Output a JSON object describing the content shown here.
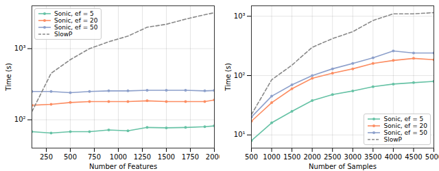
{
  "chart_data": [
    {
      "type": "line",
      "xlabel": "Number of Features",
      "ylabel": "Time (s)",
      "log": "y",
      "grid": true,
      "legend": "upper left",
      "x": [
        100,
        300,
        500,
        700,
        900,
        1100,
        1300,
        1500,
        1700,
        1900,
        2000
      ],
      "xlim": [
        100,
        2000
      ],
      "xticks": [
        250,
        500,
        750,
        1000,
        1250,
        1500,
        1750,
        2000
      ],
      "ylim": [
        40,
        4000
      ],
      "yticks": [
        {
          "value": 100,
          "label": "10²"
        },
        {
          "value": 1000,
          "label": "10³"
        }
      ],
      "series": [
        {
          "name": "Sonic, ef = 5",
          "color": "#66c2a5",
          "marker": "o",
          "line_style": "solid",
          "values": [
            68,
            65,
            68,
            68,
            72,
            70,
            78,
            77,
            78,
            80,
            82
          ]
        },
        {
          "name": "Sonic, ef = 20",
          "color": "#fc8d62",
          "marker": "o",
          "line_style": "solid",
          "values": [
            160,
            165,
            175,
            180,
            180,
            180,
            185,
            180,
            180,
            180,
            190
          ]
        },
        {
          "name": "Sonic, ef = 50",
          "color": "#8da0cb",
          "marker": "o",
          "line_style": "solid",
          "values": [
            250,
            250,
            240,
            250,
            255,
            255,
            260,
            260,
            260,
            255,
            258
          ]
        },
        {
          "name": "SlowP",
          "color": "#888888",
          "line_style": "dashed",
          "values": [
            130,
            450,
            700,
            1000,
            1250,
            1500,
            2000,
            2200,
            2600,
            3000,
            3200
          ]
        }
      ]
    },
    {
      "type": "line",
      "xlabel": "Number of Samples",
      "ylabel": "Time (s)",
      "log": "y",
      "grid": true,
      "legend": "lower right",
      "x": [
        500,
        1000,
        1500,
        2000,
        2500,
        3000,
        3500,
        4000,
        4500,
        5000
      ],
      "xlim": [
        500,
        5000
      ],
      "xticks": [
        500,
        1000,
        1500,
        2000,
        2500,
        3000,
        3500,
        4000,
        4500,
        5000
      ],
      "ylim": [
        6,
        1500
      ],
      "yticks": [
        {
          "value": 10,
          "label": "10¹"
        },
        {
          "value": 100,
          "label": "10²"
        },
        {
          "value": 1000,
          "label": "10³"
        }
      ],
      "series": [
        {
          "name": "Sonic, ef = 5",
          "color": "#66c2a5",
          "marker": "o",
          "line_style": "solid",
          "values": [
            8,
            16,
            25,
            38,
            48,
            55,
            65,
            72,
            76,
            80
          ]
        },
        {
          "name": "Sonic, ef = 20",
          "color": "#fc8d62",
          "marker": "o",
          "line_style": "solid",
          "values": [
            17,
            35,
            60,
            90,
            110,
            130,
            160,
            180,
            195,
            185
          ]
        },
        {
          "name": "Sonic, ef = 50",
          "color": "#8da0cb",
          "marker": "o",
          "line_style": "solid",
          "values": [
            20,
            45,
            70,
            100,
            130,
            160,
            200,
            260,
            240,
            240
          ]
        },
        {
          "name": "SlowP",
          "color": "#888888",
          "line_style": "dashed",
          "values": [
            22,
            85,
            150,
            300,
            420,
            550,
            850,
            1100,
            1100,
            1150
          ]
        }
      ]
    }
  ]
}
